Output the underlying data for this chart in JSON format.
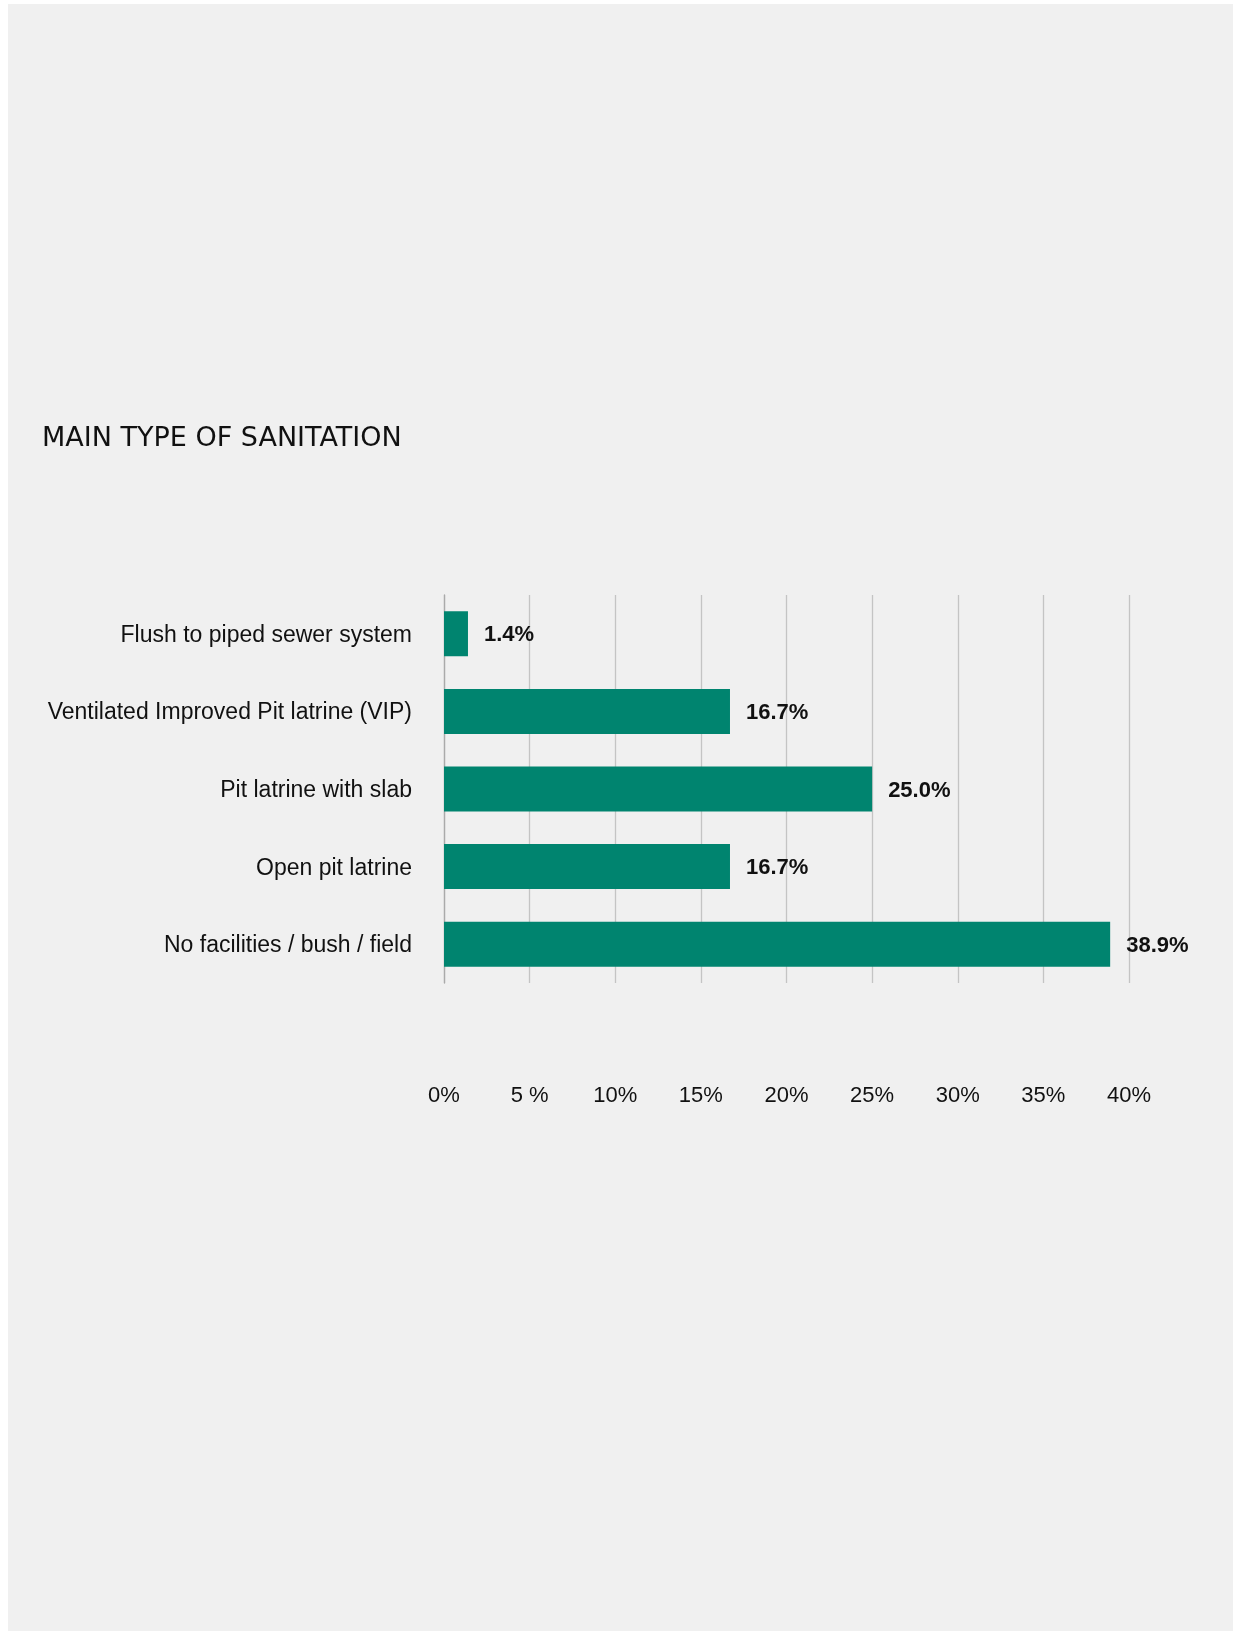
{
  "chart_data": {
    "type": "bar",
    "orientation": "horizontal",
    "title": "MAIN TYPE OF SANITATION",
    "categories": [
      "Flush to piped sewer system",
      "Ventilated Improved Pit latrine (VIP)",
      "Pit latrine with slab",
      "Open pit latrine",
      "No facilities / bush / field"
    ],
    "values": [
      1.4,
      16.7,
      25.0,
      16.7,
      38.9
    ],
    "value_labels": [
      "1.4%",
      "16.7%",
      "25.0%",
      "16.7%",
      "38.9%"
    ],
    "color": "#00846f",
    "xlim": [
      0,
      40
    ],
    "xticks": [
      {
        "value": 0,
        "label": "0%"
      },
      {
        "value": 5,
        "label": "5 %"
      },
      {
        "value": 10,
        "label": "10%"
      },
      {
        "value": 15,
        "label": "15%"
      },
      {
        "value": 20,
        "label": "20%"
      },
      {
        "value": 25,
        "label": "25%"
      },
      {
        "value": 30,
        "label": "30%"
      },
      {
        "value": 35,
        "label": "35%"
      },
      {
        "value": 40,
        "label": "40%"
      }
    ],
    "grid": "x"
  }
}
